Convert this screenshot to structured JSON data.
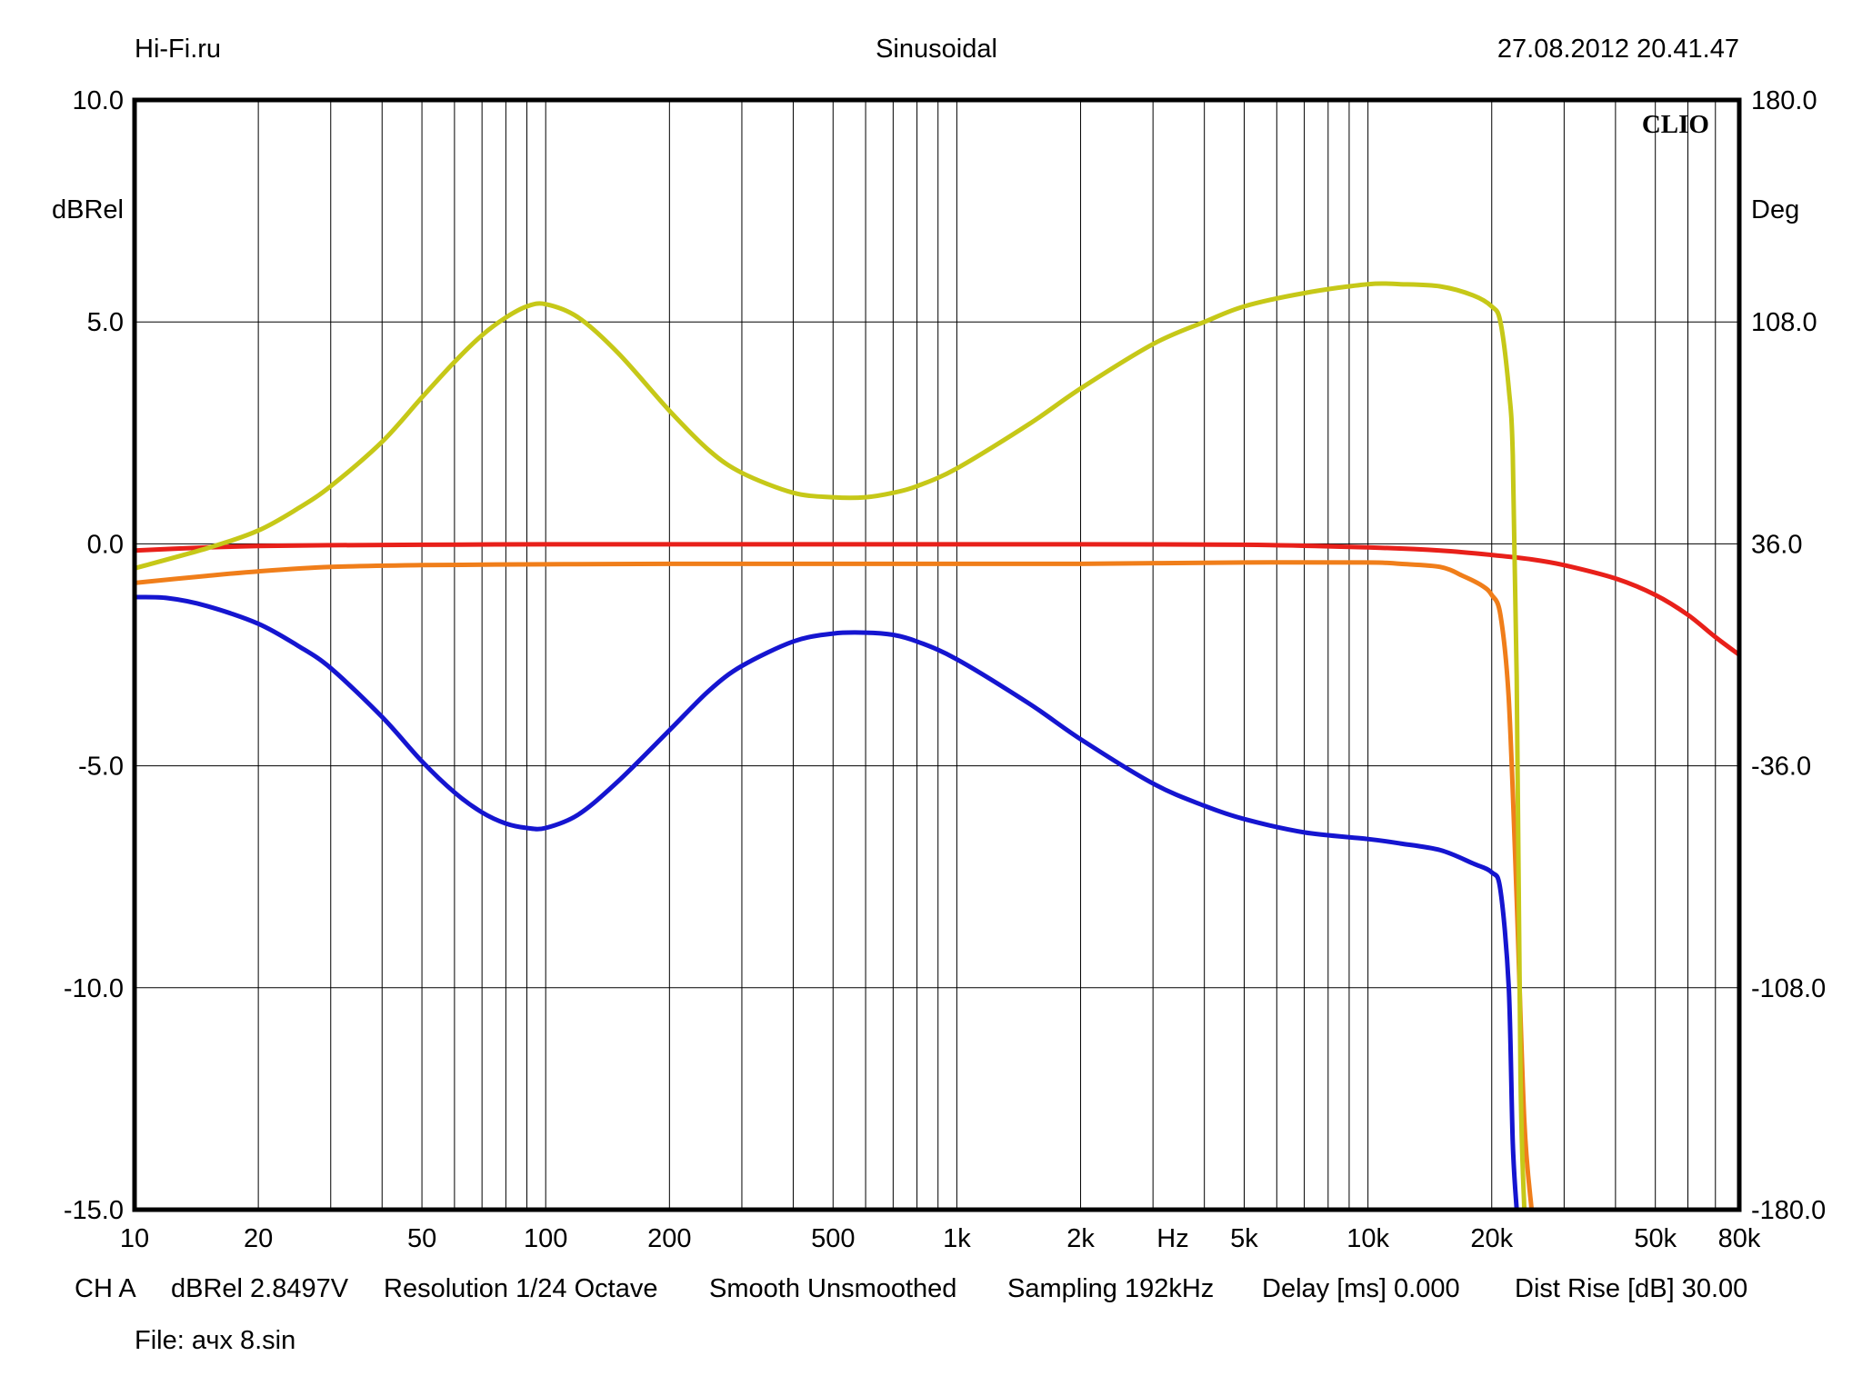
{
  "header": {
    "left": "Hi-Fi.ru",
    "center": "Sinusoidal",
    "right": "27.08.2012 20.41.47"
  },
  "brand": "CLIO",
  "footer": {
    "channel": "CH A",
    "units": "dBRel 2.8497V",
    "resolution": "Resolution 1/24 Octave",
    "smooth": "Smooth Unsmoothed",
    "sampling": "Sampling 192kHz",
    "delay": "Delay [ms] 0.000",
    "dist_rise": "Dist Rise [dB] 30.00",
    "file": "File: ачх 8.sin"
  },
  "chart_data": {
    "type": "line",
    "x_scale": "log",
    "xlim": [
      10,
      80000
    ],
    "ylim": [
      -15,
      10
    ],
    "y2lim": [
      -180,
      180
    ],
    "grid": true,
    "ylabel": "dBRel",
    "y2label": "Deg",
    "xlabel": "Hz",
    "x_ticks": [
      {
        "value": 10,
        "label": "10"
      },
      {
        "value": 20,
        "label": "20"
      },
      {
        "value": 50,
        "label": "50"
      },
      {
        "value": 100,
        "label": "100"
      },
      {
        "value": 200,
        "label": "200"
      },
      {
        "value": 500,
        "label": "500"
      },
      {
        "value": 1000,
        "label": "1k"
      },
      {
        "value": 2000,
        "label": "2k"
      },
      {
        "value": 5000,
        "label": "5k"
      },
      {
        "value": 10000,
        "label": "10k"
      },
      {
        "value": 20000,
        "label": "20k"
      },
      {
        "value": 50000,
        "label": "50k"
      },
      {
        "value": 80000,
        "label": "80k"
      }
    ],
    "y_ticks": [
      {
        "value": 10,
        "label": "10.0"
      },
      {
        "value": 5,
        "label": "5.0"
      },
      {
        "value": 0,
        "label": "0.0"
      },
      {
        "value": -5,
        "label": "-5.0"
      },
      {
        "value": -10,
        "label": "-10.0"
      },
      {
        "value": -15,
        "label": "-15.0"
      }
    ],
    "y2_ticks": [
      {
        "value": 180,
        "label": "180.0"
      },
      {
        "value": 108,
        "label": "108.0"
      },
      {
        "value": 36,
        "label": "36.0"
      },
      {
        "value": -36,
        "label": "-36.0"
      },
      {
        "value": -108,
        "label": "-108.0"
      },
      {
        "value": -180,
        "label": "-180.0"
      }
    ],
    "series": [
      {
        "color": "#e8201a",
        "x": [
          10,
          15,
          20,
          30,
          50,
          100,
          200,
          500,
          1000,
          2000,
          5000,
          10000,
          15000,
          20000,
          25000,
          30000,
          40000,
          50000,
          60000,
          70000,
          80000
        ],
        "y": [
          -0.15,
          -0.08,
          -0.05,
          -0.03,
          -0.02,
          -0.01,
          -0.01,
          -0.01,
          -0.01,
          -0.01,
          -0.02,
          -0.08,
          -0.15,
          -0.25,
          -0.35,
          -0.48,
          -0.78,
          -1.15,
          -1.6,
          -2.1,
          -2.5
        ]
      },
      {
        "color": "#f07e1a",
        "x": [
          10,
          15,
          20,
          30,
          50,
          100,
          200,
          500,
          1000,
          2000,
          5000,
          10000,
          12000,
          15000,
          17000,
          19000,
          20000,
          21000,
          22000,
          23000,
          24000,
          25000
        ],
        "y": [
          -0.88,
          -0.72,
          -0.62,
          -0.52,
          -0.48,
          -0.46,
          -0.45,
          -0.45,
          -0.45,
          -0.45,
          -0.42,
          -0.42,
          -0.45,
          -0.52,
          -0.72,
          -0.95,
          -1.15,
          -1.6,
          -3.5,
          -8.0,
          -13.0,
          -15.0
        ]
      },
      {
        "color": "#c6c818",
        "x": [
          10,
          15,
          20,
          25,
          30,
          40,
          50,
          60,
          70,
          80,
          90,
          100,
          120,
          150,
          200,
          250,
          300,
          400,
          500,
          600,
          700,
          800,
          1000,
          1500,
          2000,
          3000,
          4000,
          5000,
          7000,
          10000,
          12000,
          15000,
          18000,
          20000,
          21000,
          22000,
          22500,
          23000,
          23500,
          24000
        ],
        "y": [
          -0.55,
          -0.1,
          0.3,
          0.8,
          1.3,
          2.3,
          3.3,
          4.1,
          4.7,
          5.1,
          5.35,
          5.4,
          5.1,
          4.3,
          3.0,
          2.1,
          1.6,
          1.15,
          1.05,
          1.05,
          1.15,
          1.3,
          1.7,
          2.7,
          3.5,
          4.5,
          5.0,
          5.35,
          5.65,
          5.85,
          5.85,
          5.8,
          5.6,
          5.35,
          5.0,
          3.5,
          2.0,
          -3.0,
          -12.0,
          -15.0
        ]
      },
      {
        "color": "#1515d0",
        "x": [
          10,
          12,
          15,
          20,
          25,
          30,
          40,
          50,
          60,
          70,
          80,
          90,
          100,
          120,
          150,
          200,
          250,
          300,
          400,
          500,
          600,
          700,
          800,
          1000,
          1500,
          2000,
          3000,
          4000,
          5000,
          7000,
          10000,
          12000,
          15000,
          18000,
          20000,
          21000,
          22000,
          22500,
          23000
        ],
        "y": [
          -1.2,
          -1.22,
          -1.4,
          -1.8,
          -2.3,
          -2.8,
          -3.9,
          -4.9,
          -5.6,
          -6.05,
          -6.3,
          -6.4,
          -6.4,
          -6.1,
          -5.35,
          -4.2,
          -3.3,
          -2.75,
          -2.2,
          -2.02,
          -2.0,
          -2.05,
          -2.2,
          -2.6,
          -3.6,
          -4.4,
          -5.4,
          -5.9,
          -6.2,
          -6.5,
          -6.65,
          -6.75,
          -6.9,
          -7.2,
          -7.4,
          -7.8,
          -10.0,
          -13.5,
          -15.0
        ]
      }
    ]
  }
}
